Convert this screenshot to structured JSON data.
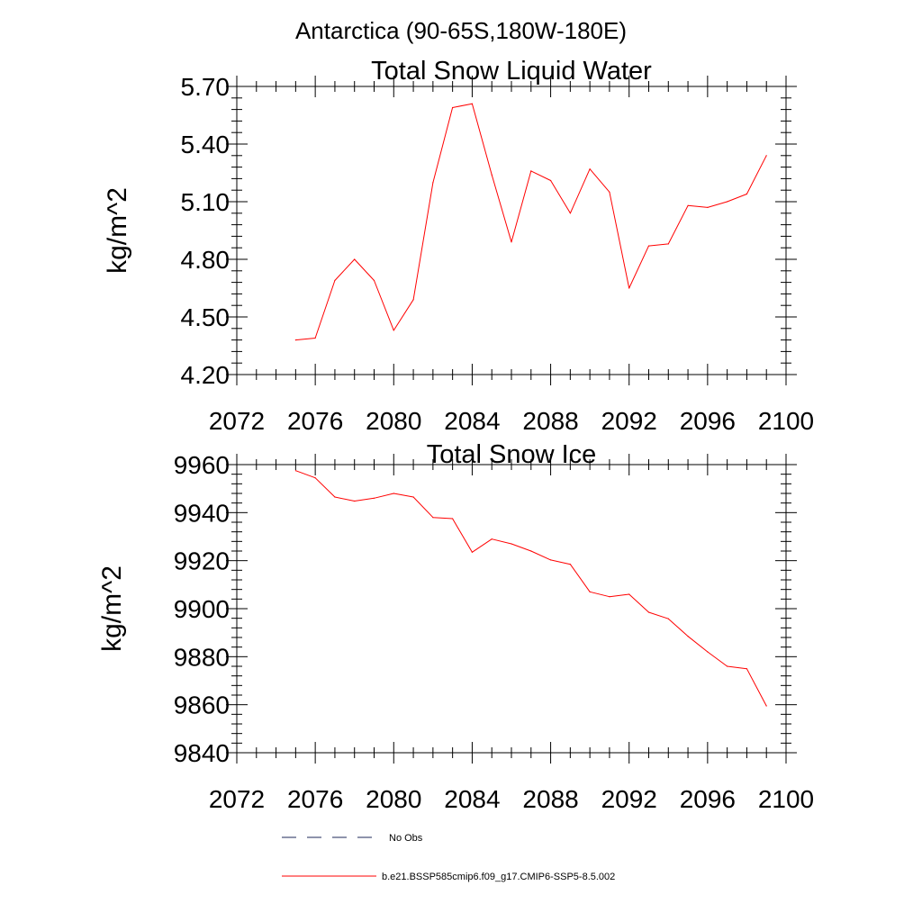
{
  "page_title": "Antarctica (90-65S,180W-180E)",
  "chart_data": [
    {
      "type": "line",
      "title": "Total Snow Liquid Water",
      "xlabel": "",
      "ylabel": "kg/m^2",
      "xlim": [
        2072,
        2100
      ],
      "ylim": [
        4.2,
        5.7
      ],
      "x_ticks": [
        "2072",
        "2076",
        "2080",
        "2084",
        "2088",
        "2092",
        "2096",
        "2100"
      ],
      "y_ticks": [
        "4.20",
        "4.50",
        "4.80",
        "5.10",
        "5.40",
        "5.70"
      ],
      "grid": false,
      "series": [
        {
          "name": "b.e21.BSSP585cmip6.f09_g17.CMIP6-SSP5-8.5.002",
          "color": "#ff0000",
          "x": [
            2075,
            2076,
            2077,
            2078,
            2079,
            2080,
            2081,
            2082,
            2083,
            2084,
            2085,
            2086,
            2087,
            2088,
            2089,
            2090,
            2091,
            2092,
            2093,
            2094,
            2095,
            2096,
            2097,
            2098,
            2099
          ],
          "y": [
            4.38,
            4.39,
            4.69,
            4.8,
            4.69,
            4.43,
            4.59,
            5.2,
            5.59,
            5.61,
            5.24,
            4.89,
            5.26,
            5.21,
            5.04,
            5.27,
            5.15,
            4.65,
            4.87,
            4.88,
            5.08,
            5.07,
            5.1,
            5.14,
            5.34
          ]
        }
      ]
    },
    {
      "type": "line",
      "title": "Total Snow Ice",
      "xlabel": "",
      "ylabel": "kg/m^2",
      "xlim": [
        2072,
        2100
      ],
      "ylim": [
        9840,
        9960
      ],
      "x_ticks": [
        "2072",
        "2076",
        "2080",
        "2084",
        "2088",
        "2092",
        "2096",
        "2100"
      ],
      "y_ticks": [
        "9840",
        "9860",
        "9880",
        "9900",
        "9920",
        "9940",
        "9960"
      ],
      "grid": false,
      "series": [
        {
          "name": "b.e21.BSSP585cmip6.f09_g17.CMIP6-SSP5-8.5.002",
          "color": "#ff0000",
          "x": [
            2075,
            2076,
            2077,
            2078,
            2079,
            2080,
            2081,
            2082,
            2083,
            2084,
            2085,
            2086,
            2087,
            2088,
            2089,
            2090,
            2091,
            2092,
            2093,
            2094,
            2095,
            2096,
            2097,
            2098,
            2099
          ],
          "y": [
            9957.5,
            9954.5,
            9946.5,
            9944.8,
            9946.0,
            9948.0,
            9946.5,
            9938.0,
            9937.5,
            9923.5,
            9929.0,
            9927.0,
            9924.0,
            9920.3,
            9918.5,
            9907.0,
            9905.0,
            9906.0,
            9898.5,
            9895.8,
            9888.5,
            9882.0,
            9876.0,
            9875.0,
            9859.5
          ]
        }
      ]
    }
  ],
  "legend": {
    "placement": "bottom",
    "entries": [
      {
        "label": "No Obs",
        "style": "dashed",
        "color": "#1e2a5a"
      },
      {
        "label": "b.e21.BSSP585cmip6.f09_g17.CMIP6-SSP5-8.5.002",
        "style": "solid",
        "color": "#ff0000"
      }
    ]
  }
}
